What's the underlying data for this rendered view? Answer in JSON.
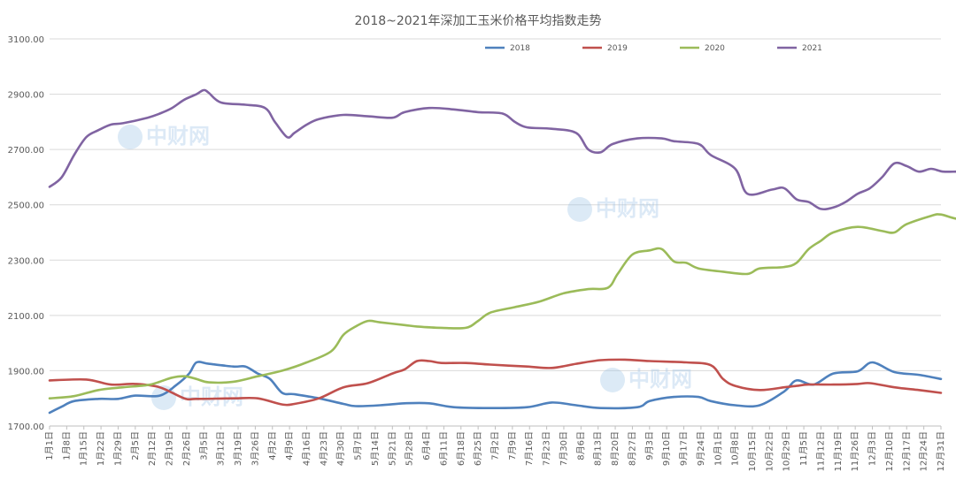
{
  "chart_data": {
    "type": "line",
    "title": "2018~2021年深加工玉米价格平均指数走势",
    "ylim": [
      1700,
      3100
    ],
    "yticks": [
      "1700.00",
      "1900.00",
      "2100.00",
      "2300.00",
      "2500.00",
      "2700.00",
      "2900.00",
      "3100.00"
    ],
    "yticks_values": [
      1700,
      1900,
      2100,
      2300,
      2500,
      2700,
      2900,
      3100
    ],
    "xlabels": [
      "1月1日",
      "1月8日",
      "1月15日",
      "1月22日",
      "1月29日",
      "2月5日",
      "2月12日",
      "2月19日",
      "2月26日",
      "3月5日",
      "3月12日",
      "3月19日",
      "3月26日",
      "4月2日",
      "4月9日",
      "4月16日",
      "4月23日",
      "4月30日",
      "5月7日",
      "5月14日",
      "5月21日",
      "5月28日",
      "6月4日",
      "6月11日",
      "6月18日",
      "6月25日",
      "7月2日",
      "7月9日",
      "7月16日",
      "7月23日",
      "7月30日",
      "8月6日",
      "8月13日",
      "8月20日",
      "8月27日",
      "9月3日",
      "9月10日",
      "9月17日",
      "9月24日",
      "10月1日",
      "10月8日",
      "10月15日",
      "10月22日",
      "10月29日",
      "11月5日",
      "11月12日",
      "11月19日",
      "11月26日",
      "12月3日",
      "12月10日",
      "12月17日",
      "12月24日",
      "12月31日"
    ],
    "xlabel_days": [
      0,
      7,
      14,
      21,
      28,
      35,
      42,
      49,
      56,
      63,
      70,
      77,
      84,
      91,
      98,
      105,
      112,
      119,
      126,
      133,
      140,
      147,
      154,
      161,
      168,
      175,
      182,
      189,
      196,
      203,
      210,
      217,
      224,
      231,
      238,
      245,
      252,
      259,
      266,
      273,
      280,
      287,
      294,
      301,
      308,
      315,
      322,
      329,
      336,
      343,
      350,
      357,
      364
    ],
    "grid": true,
    "legend_position": "top-center",
    "series": [
      {
        "name": "2018",
        "color": "#4f81bd",
        "points": [
          [
            0,
            1748
          ],
          [
            5,
            1770
          ],
          [
            10,
            1790
          ],
          [
            20,
            1798
          ],
          [
            28,
            1798
          ],
          [
            35,
            1810
          ],
          [
            45,
            1810
          ],
          [
            52,
            1850
          ],
          [
            57,
            1890
          ],
          [
            60,
            1930
          ],
          [
            65,
            1925
          ],
          [
            75,
            1915
          ],
          [
            80,
            1915
          ],
          [
            85,
            1890
          ],
          [
            90,
            1870
          ],
          [
            95,
            1820
          ],
          [
            100,
            1815
          ],
          [
            110,
            1800
          ],
          [
            120,
            1780
          ],
          [
            125,
            1772
          ],
          [
            135,
            1775
          ],
          [
            145,
            1782
          ],
          [
            155,
            1782
          ],
          [
            165,
            1768
          ],
          [
            180,
            1765
          ],
          [
            195,
            1768
          ],
          [
            205,
            1785
          ],
          [
            215,
            1775
          ],
          [
            225,
            1765
          ],
          [
            240,
            1768
          ],
          [
            245,
            1790
          ],
          [
            255,
            1805
          ],
          [
            265,
            1805
          ],
          [
            270,
            1790
          ],
          [
            280,
            1775
          ],
          [
            290,
            1775
          ],
          [
            300,
            1825
          ],
          [
            305,
            1865
          ],
          [
            312,
            1850
          ],
          [
            320,
            1890
          ],
          [
            330,
            1898
          ],
          [
            336,
            1930
          ],
          [
            345,
            1895
          ],
          [
            355,
            1885
          ],
          [
            364,
            1870
          ]
        ]
      },
      {
        "name": "2019",
        "color": "#c0504d",
        "points": [
          [
            0,
            1865
          ],
          [
            15,
            1868
          ],
          [
            25,
            1850
          ],
          [
            35,
            1852
          ],
          [
            45,
            1840
          ],
          [
            55,
            1800
          ],
          [
            60,
            1798
          ],
          [
            75,
            1800
          ],
          [
            85,
            1800
          ],
          [
            95,
            1778
          ],
          [
            100,
            1780
          ],
          [
            110,
            1800
          ],
          [
            120,
            1840
          ],
          [
            130,
            1855
          ],
          [
            140,
            1890
          ],
          [
            145,
            1905
          ],
          [
            150,
            1935
          ],
          [
            155,
            1935
          ],
          [
            160,
            1928
          ],
          [
            170,
            1928
          ],
          [
            180,
            1922
          ],
          [
            195,
            1915
          ],
          [
            205,
            1910
          ],
          [
            215,
            1925
          ],
          [
            225,
            1938
          ],
          [
            235,
            1940
          ],
          [
            245,
            1935
          ],
          [
            260,
            1930
          ],
          [
            270,
            1920
          ],
          [
            275,
            1870
          ],
          [
            280,
            1845
          ],
          [
            290,
            1830
          ],
          [
            300,
            1840
          ],
          [
            305,
            1845
          ],
          [
            310,
            1850
          ],
          [
            320,
            1850
          ],
          [
            330,
            1852
          ],
          [
            335,
            1855
          ],
          [
            345,
            1840
          ],
          [
            355,
            1830
          ],
          [
            364,
            1820
          ]
        ]
      },
      {
        "name": "2020",
        "color": "#9bbb59",
        "points": [
          [
            0,
            1800
          ],
          [
            10,
            1808
          ],
          [
            20,
            1830
          ],
          [
            30,
            1840
          ],
          [
            40,
            1848
          ],
          [
            45,
            1860
          ],
          [
            50,
            1875
          ],
          [
            55,
            1880
          ],
          [
            60,
            1870
          ],
          [
            65,
            1858
          ],
          [
            75,
            1860
          ],
          [
            85,
            1880
          ],
          [
            95,
            1900
          ],
          [
            105,
            1930
          ],
          [
            115,
            1970
          ],
          [
            120,
            2030
          ],
          [
            125,
            2060
          ],
          [
            130,
            2080
          ],
          [
            135,
            2075
          ],
          [
            145,
            2065
          ],
          [
            150,
            2060
          ],
          [
            160,
            2055
          ],
          [
            170,
            2055
          ],
          [
            175,
            2080
          ],
          [
            180,
            2110
          ],
          [
            190,
            2130
          ],
          [
            200,
            2150
          ],
          [
            210,
            2180
          ],
          [
            220,
            2195
          ],
          [
            228,
            2200
          ],
          [
            232,
            2250
          ],
          [
            238,
            2320
          ],
          [
            245,
            2335
          ],
          [
            250,
            2340
          ],
          [
            255,
            2295
          ],
          [
            260,
            2290
          ],
          [
            265,
            2270
          ],
          [
            275,
            2258
          ],
          [
            285,
            2250
          ],
          [
            290,
            2270
          ],
          [
            300,
            2275
          ],
          [
            305,
            2290
          ],
          [
            310,
            2340
          ],
          [
            315,
            2370
          ],
          [
            320,
            2400
          ],
          [
            330,
            2420
          ],
          [
            340,
            2405
          ],
          [
            345,
            2400
          ],
          [
            350,
            2430
          ],
          [
            360,
            2460
          ],
          [
            364,
            2465
          ],
          [
            372,
            2450
          ],
          [
            380,
            2490
          ]
        ]
      },
      {
        "name": "2021",
        "color": "#8064a2",
        "points": [
          [
            0,
            2565
          ],
          [
            5,
            2600
          ],
          [
            10,
            2680
          ],
          [
            15,
            2745
          ],
          [
            20,
            2770
          ],
          [
            25,
            2790
          ],
          [
            30,
            2795
          ],
          [
            40,
            2815
          ],
          [
            45,
            2830
          ],
          [
            50,
            2850
          ],
          [
            55,
            2880
          ],
          [
            60,
            2900
          ],
          [
            63,
            2915
          ],
          [
            65,
            2905
          ],
          [
            70,
            2870
          ],
          [
            80,
            2862
          ],
          [
            88,
            2850
          ],
          [
            92,
            2800
          ],
          [
            97,
            2745
          ],
          [
            100,
            2760
          ],
          [
            105,
            2790
          ],
          [
            110,
            2810
          ],
          [
            120,
            2825
          ],
          [
            130,
            2820
          ],
          [
            140,
            2815
          ],
          [
            145,
            2835
          ],
          [
            155,
            2850
          ],
          [
            165,
            2845
          ],
          [
            175,
            2835
          ],
          [
            185,
            2830
          ],
          [
            190,
            2800
          ],
          [
            195,
            2780
          ],
          [
            205,
            2775
          ],
          [
            215,
            2760
          ],
          [
            220,
            2700
          ],
          [
            225,
            2690
          ],
          [
            230,
            2720
          ],
          [
            240,
            2740
          ],
          [
            250,
            2740
          ],
          [
            255,
            2730
          ],
          [
            265,
            2720
          ],
          [
            270,
            2680
          ],
          [
            280,
            2630
          ],
          [
            285,
            2540
          ],
          [
            295,
            2555
          ],
          [
            300,
            2560
          ],
          [
            305,
            2520
          ],
          [
            310,
            2510
          ],
          [
            315,
            2485
          ],
          [
            320,
            2490
          ],
          [
            325,
            2510
          ],
          [
            330,
            2540
          ],
          [
            335,
            2560
          ],
          [
            340,
            2600
          ],
          [
            345,
            2650
          ],
          [
            350,
            2640
          ],
          [
            355,
            2620
          ],
          [
            360,
            2630
          ],
          [
            365,
            2620
          ],
          [
            372,
            2620
          ],
          [
            376,
            2615
          ]
        ]
      }
    ]
  },
  "watermark": {
    "brand": "中财网"
  }
}
